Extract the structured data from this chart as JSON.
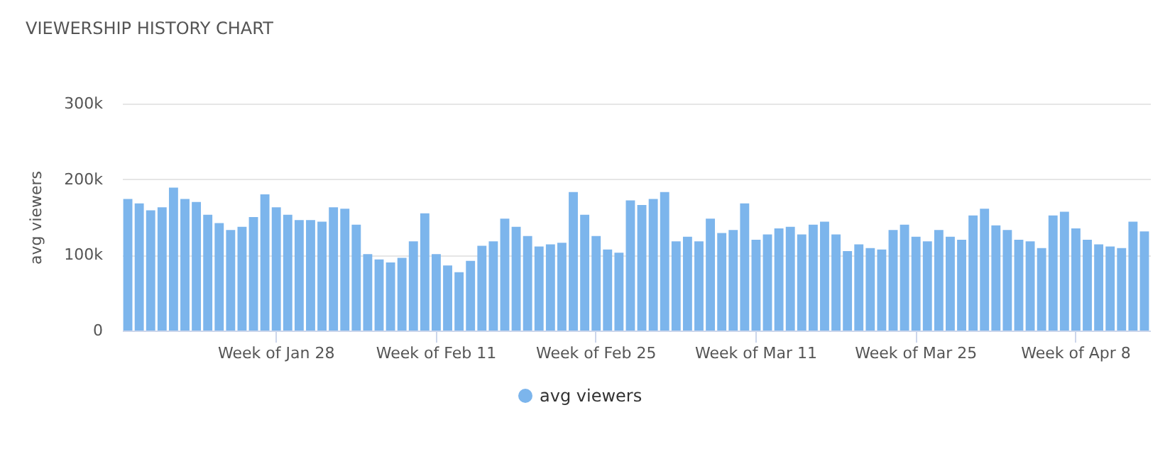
{
  "chart_data": {
    "type": "bar",
    "title": "VIEWERSHIP HISTORY CHART",
    "ylabel": "avg viewers",
    "categories": [
      null,
      null,
      null,
      null,
      null,
      null,
      null,
      null,
      null,
      null,
      null,
      null,
      null,
      "Week of Jan 28",
      null,
      null,
      null,
      null,
      null,
      null,
      null,
      null,
      null,
      null,
      null,
      null,
      null,
      "Week of Feb 11",
      null,
      null,
      null,
      null,
      null,
      null,
      null,
      null,
      null,
      null,
      null,
      null,
      null,
      "Week of Feb 25",
      null,
      null,
      null,
      null,
      null,
      null,
      null,
      null,
      null,
      null,
      null,
      null,
      null,
      "Week of Mar 11",
      null,
      null,
      null,
      null,
      null,
      null,
      null,
      null,
      null,
      null,
      null,
      null,
      null,
      "Week of Mar 25",
      null,
      null,
      null,
      null,
      null,
      null,
      null,
      null,
      null,
      null,
      null,
      null,
      null,
      "Week of Apr 8",
      null,
      null,
      null,
      null,
      null,
      null
    ],
    "series": [
      {
        "name": "avg viewers",
        "color": "#7cb5ec",
        "values": [
          174000,
          168000,
          159000,
          163000,
          189000,
          174000,
          170000,
          153000,
          142000,
          133000,
          137000,
          150000,
          180000,
          163000,
          153000,
          146000,
          146000,
          144000,
          163000,
          161000,
          140000,
          101000,
          94000,
          90000,
          96000,
          118000,
          155000,
          101000,
          86000,
          77000,
          92000,
          112000,
          118000,
          148000,
          137000,
          125000,
          111000,
          114000,
          116000,
          183000,
          153000,
          125000,
          107000,
          103000,
          172000,
          166000,
          174000,
          183000,
          118000,
          124000,
          118000,
          148000,
          129000,
          133000,
          168000,
          120000,
          127000,
          135000,
          137000,
          127000,
          140000,
          144000,
          127000,
          105000,
          114000,
          109000,
          107000,
          133000,
          140000,
          124000,
          118000,
          133000,
          124000,
          120000,
          152000,
          161000,
          139000,
          133000,
          120000,
          118000,
          109000,
          152000,
          157000,
          135000,
          120000,
          114000,
          111000,
          109000,
          144000,
          131000
        ]
      }
    ],
    "ylim": [
      0,
      300000
    ],
    "yticks": [
      {
        "value": 0,
        "label": "0"
      },
      {
        "value": 100000,
        "label": "100k"
      },
      {
        "value": 200000,
        "label": "200k"
      },
      {
        "value": 300000,
        "label": "300k"
      }
    ],
    "grid": "y",
    "legend": "bottom"
  }
}
